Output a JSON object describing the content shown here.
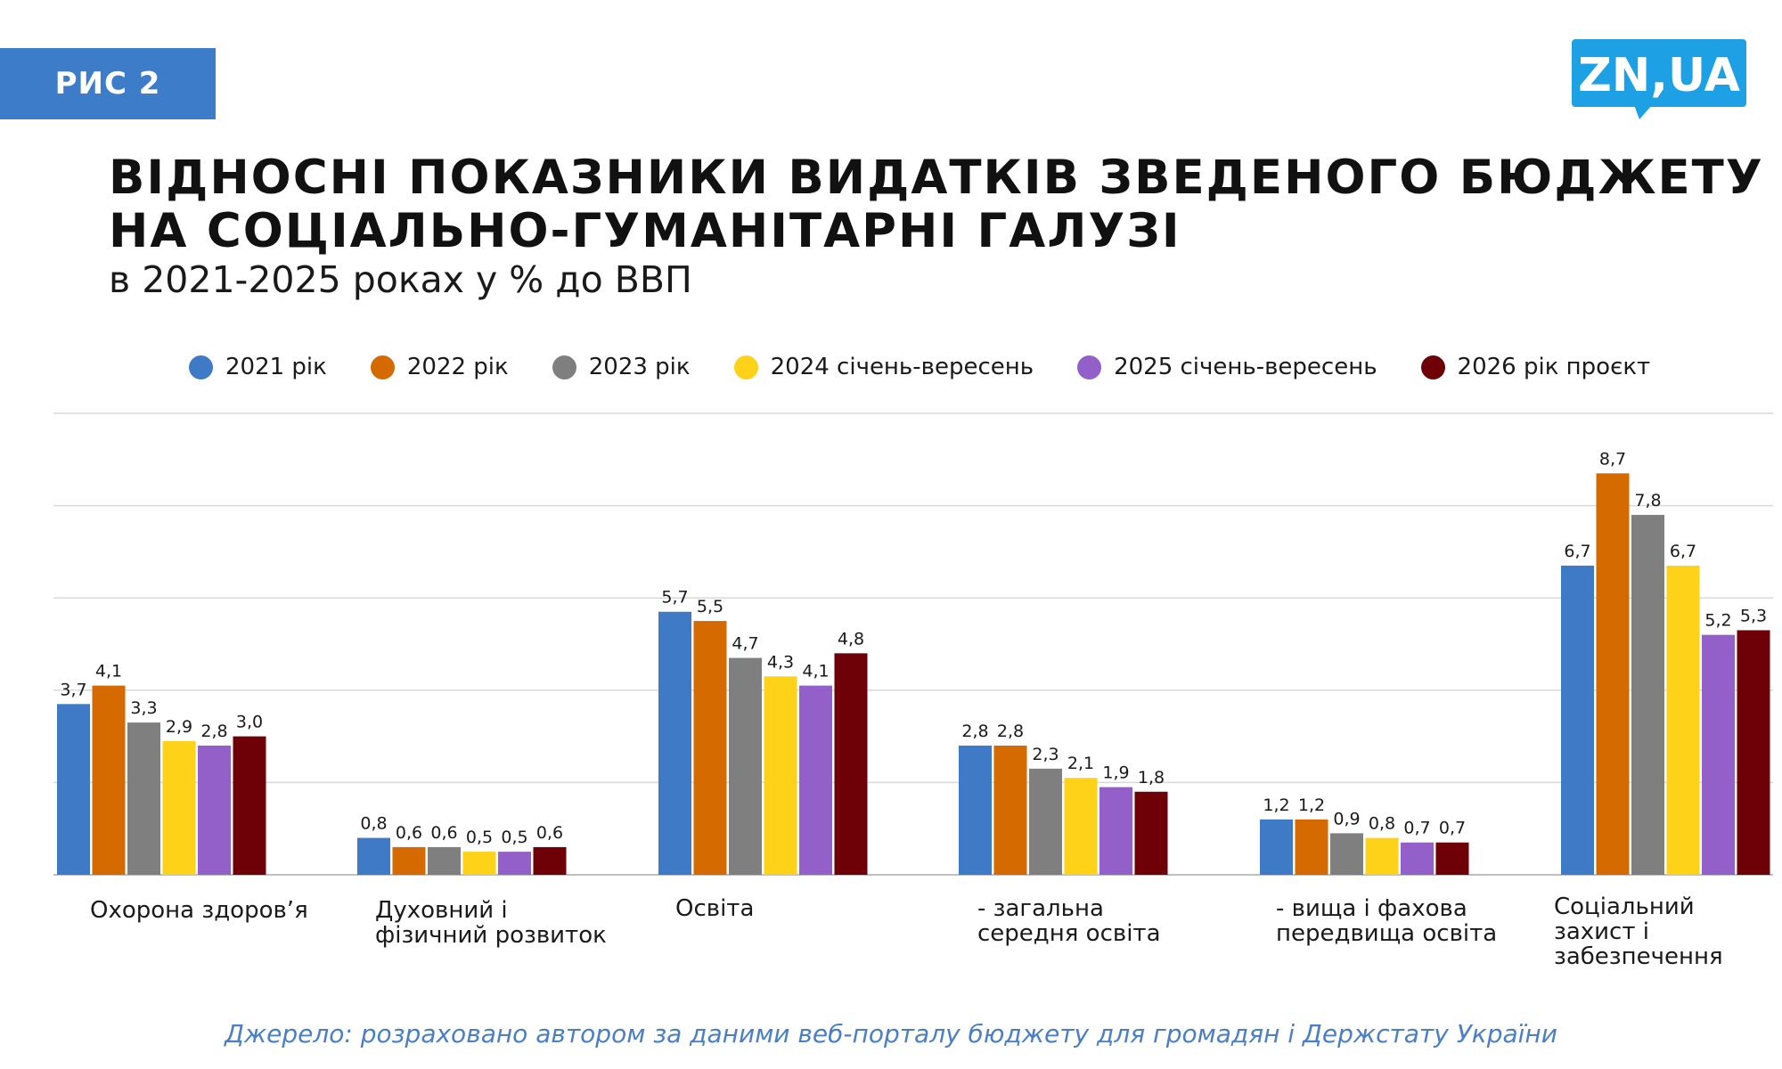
{
  "figure_badge": "РИС 2",
  "logo": {
    "text": "ZN,UA",
    "color": "#1ea0e4"
  },
  "title_lines": [
    "ВІДНОСНІ ПОКАЗНИКИ ВИДАТКІВ ЗВЕДЕНОГО БЮДЖЕТУ",
    "НА СОЦІАЛЬНО-ГУМАНІТАРНІ ГАЛУЗІ"
  ],
  "subtitle": "в 2021-2025 роках у % до ВВП",
  "source": "Джерело: розраховано автором за даними веб-порталу бюджету для громадян і Держстату України",
  "chart_data": {
    "type": "bar",
    "title": "ВІДНОСНІ ПОКАЗНИКИ ВИДАТКІВ ЗВЕДЕНОГО БЮДЖЕТУ НА СОЦІАЛЬНО-ГУМАНІТАРНІ ГАЛУЗІ",
    "subtitle": "в 2021-2025 роках у % до ВВП",
    "categories": [
      "Охорона здоров’я",
      "Духовний і\nфізичний розвиток",
      "Освіта",
      "- загальна\nсередня освіта",
      "- вища і фахова\nпередвища освіта",
      "Соціальний\nзахист і\nзабезпечення"
    ],
    "series": [
      {
        "name": "2021 рік",
        "color": "#3f7ac7",
        "values": [
          3.7,
          0.8,
          5.7,
          2.8,
          1.2,
          6.7
        ],
        "labels": [
          "3,7",
          "0,8",
          "5,7",
          "2,8",
          "1,2",
          "6,7"
        ]
      },
      {
        "name": "2022 рік",
        "color": "#d46a00",
        "values": [
          4.1,
          0.6,
          5.5,
          2.8,
          1.2,
          8.7
        ],
        "labels": [
          "4,1",
          "0,6",
          "5,5",
          "2,8",
          "1,2",
          "8,7"
        ]
      },
      {
        "name": "2023 рік",
        "color": "#7f7f7f",
        "values": [
          3.3,
          0.6,
          4.7,
          2.3,
          0.9,
          7.8
        ],
        "labels": [
          "3,3",
          "0,6",
          "4,7",
          "2,3",
          "0,9",
          "7,8"
        ]
      },
      {
        "name": "2024 січень-вересень",
        "color": "#ffd21a",
        "values": [
          2.9,
          0.5,
          4.3,
          2.1,
          0.8,
          6.7
        ],
        "labels": [
          "2,9",
          "0,5",
          "4,3",
          "2,1",
          "0,8",
          "6,7"
        ]
      },
      {
        "name": "2025 січень-вересень",
        "color": "#935fc8",
        "values": [
          2.8,
          0.5,
          4.1,
          1.9,
          0.7,
          5.2
        ],
        "labels": [
          "2,8",
          "0,5",
          "4,1",
          "1,9",
          "0,7",
          "5,2"
        ]
      },
      {
        "name": "2026 рік проєкт",
        "color": "#6e0008",
        "values": [
          3.0,
          0.6,
          4.8,
          1.8,
          0.7,
          5.3
        ],
        "labels": [
          "3,0",
          "0,6",
          "4,8",
          "1,8",
          "0,7",
          "5,3"
        ]
      }
    ],
    "ylim": [
      0,
      10
    ],
    "ytick_step": 2,
    "y_tick_labels_shown": false,
    "grid": true,
    "legend_position": "top"
  }
}
